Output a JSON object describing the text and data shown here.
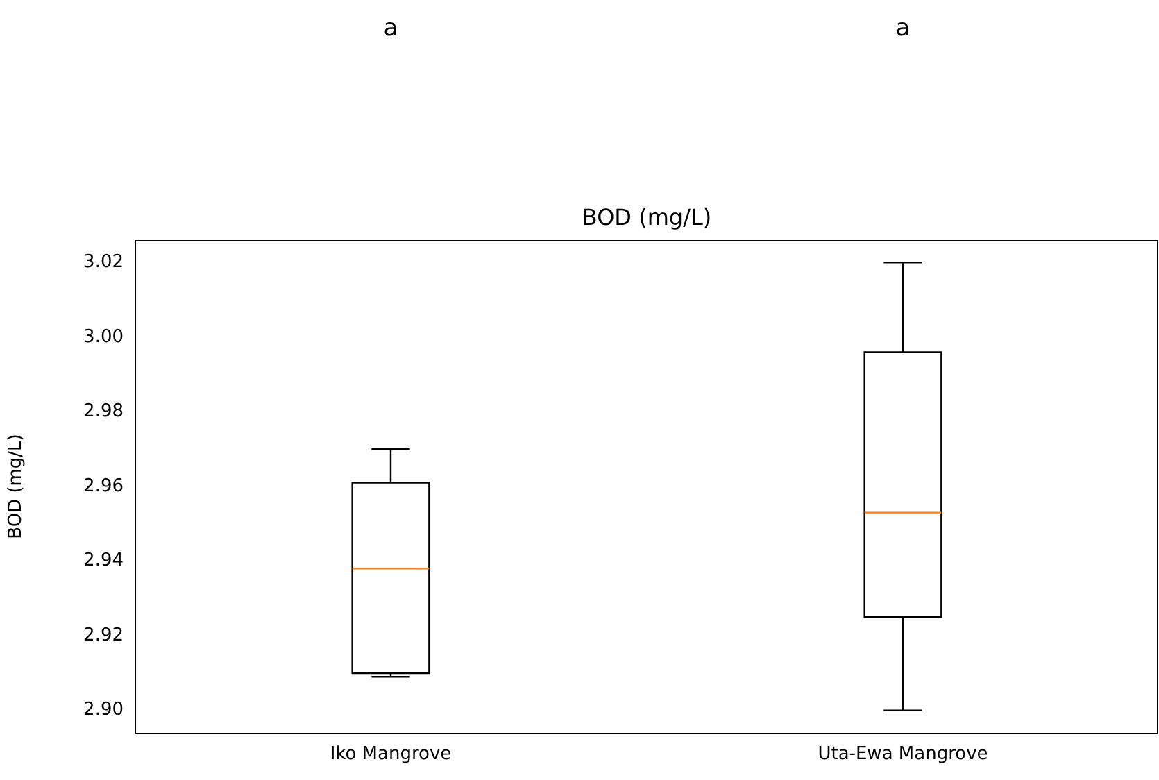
{
  "chart_data": {
    "type": "box",
    "title": "BOD (mg/L)",
    "ylabel": "BOD (mg/L)",
    "categories": [
      "Iko Mangrove",
      "Uta-Ewa Mangrove"
    ],
    "boxes": [
      {
        "low": 2.909,
        "q1": 2.91,
        "median": 2.938,
        "q3": 2.961,
        "high": 2.97
      },
      {
        "low": 2.9,
        "q1": 2.925,
        "median": 2.953,
        "q3": 2.996,
        "high": 3.02
      }
    ],
    "color": "#000000",
    "ylim": [
      2.894,
      3.026
    ],
    "yticks": [
      {
        "value": 2.9,
        "label": "2.90"
      },
      {
        "value": 2.92,
        "label": "2.92"
      },
      {
        "value": 2.94,
        "label": "2.94"
      },
      {
        "value": 2.96,
        "label": "2.96"
      },
      {
        "value": 2.98,
        "label": "2.98"
      },
      {
        "value": 3.0,
        "label": "3.00"
      },
      {
        "value": 3.02,
        "label": "3.02"
      }
    ],
    "annotations": [
      "a",
      "a"
    ],
    "grid": false,
    "legend": false
  }
}
